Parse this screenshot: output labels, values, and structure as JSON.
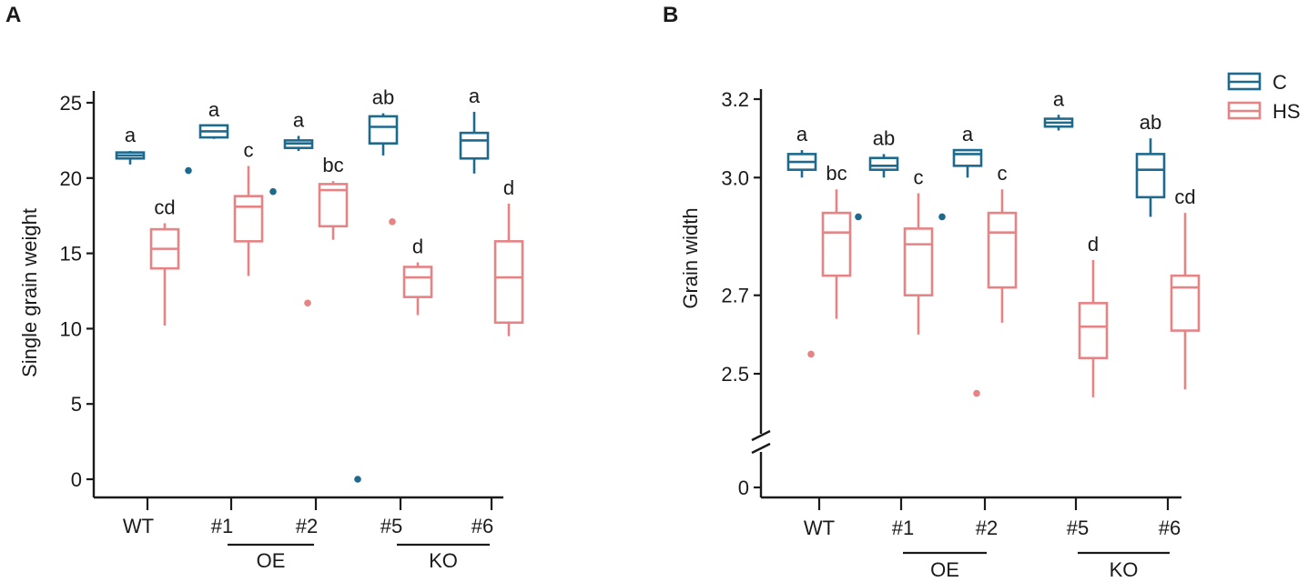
{
  "figure_labels": {
    "left": "A",
    "right": "B"
  },
  "legend": {
    "entries": [
      {
        "name": "C",
        "color": "#1d6a8e"
      },
      {
        "name": "HS",
        "color": "#e58385"
      }
    ]
  },
  "groups": {
    "OE": "OE",
    "KO": "KO"
  },
  "chart_data": [
    {
      "type": "box",
      "panel": "A",
      "title": "",
      "xlabel": "",
      "ylabel": "Single grain weight",
      "ylim": [
        -1.2,
        26.5
      ],
      "yticks": [
        0,
        5,
        10,
        15,
        20,
        25
      ],
      "categories": [
        "WT",
        "#1",
        "#2",
        "#5",
        "#6"
      ],
      "grouping": [
        {
          "name": "OE",
          "categories": [
            "#1",
            "#2"
          ]
        },
        {
          "name": "KO",
          "categories": [
            "#5",
            "#6"
          ]
        }
      ],
      "series": [
        {
          "name": "C",
          "color": "#1d6a8e",
          "boxes": [
            {
              "category": "WT",
              "min": 20.9,
              "q1": 21.3,
              "median": 21.5,
              "q3": 21.7,
              "max": 21.8,
              "outliers": [],
              "label": "a"
            },
            {
              "category": "#1",
              "min": 22.6,
              "q1": 22.7,
              "median": 23.1,
              "q3": 23.5,
              "max": 23.5,
              "outliers": [
                20.5
              ],
              "label": "a"
            },
            {
              "category": "#2",
              "min": 21.8,
              "q1": 22.0,
              "median": 22.3,
              "q3": 22.5,
              "max": 22.8,
              "outliers": [
                19.1
              ],
              "label": "a"
            },
            {
              "category": "#5",
              "min": 21.5,
              "q1": 22.3,
              "median": 23.4,
              "q3": 24.1,
              "max": 24.3,
              "outliers": [
                0.0
              ],
              "label": "ab"
            },
            {
              "category": "#6",
              "min": 20.3,
              "q1": 21.3,
              "median": 22.5,
              "q3": 23.0,
              "max": 24.4,
              "outliers": [],
              "label": "a"
            }
          ]
        },
        {
          "name": "HS",
          "color": "#e58385",
          "boxes": [
            {
              "category": "WT",
              "min": 10.2,
              "q1": 14.0,
              "median": 15.3,
              "q3": 16.6,
              "max": 17.0,
              "outliers": [],
              "label": "cd"
            },
            {
              "category": "#1",
              "min": 13.5,
              "q1": 15.8,
              "median": 18.1,
              "q3": 18.8,
              "max": 20.8,
              "outliers": [],
              "label": "c"
            },
            {
              "category": "#2",
              "min": 15.9,
              "q1": 16.8,
              "median": 19.2,
              "q3": 19.6,
              "max": 19.8,
              "outliers": [
                11.7
              ],
              "label": "bc"
            },
            {
              "category": "#5",
              "min": 10.9,
              "q1": 12.1,
              "median": 13.4,
              "q3": 14.1,
              "max": 14.4,
              "outliers": [
                17.1
              ],
              "label": "d"
            },
            {
              "category": "#6",
              "min": 9.5,
              "q1": 10.4,
              "median": 13.4,
              "q3": 15.8,
              "max": 18.3,
              "outliers": [],
              "label": "d"
            }
          ]
        }
      ]
    },
    {
      "type": "box",
      "panel": "B",
      "title": "",
      "xlabel": "",
      "ylabel": "Grain width",
      "y_axis_break": true,
      "yticks": [
        0,
        2.5,
        2.7,
        3.0,
        3.2
      ],
      "lower_segment_ylim": [
        -0.5,
        0.3
      ],
      "upper_segment_ylim": [
        2.35,
        3.24
      ],
      "categories": [
        "WT",
        "#1",
        "#2",
        "#5",
        "#6"
      ],
      "grouping": [
        {
          "name": "OE",
          "categories": [
            "#1",
            "#2"
          ]
        },
        {
          "name": "KO",
          "categories": [
            "#5",
            "#6"
          ]
        }
      ],
      "series": [
        {
          "name": "C",
          "color": "#1d6a8e",
          "boxes": [
            {
              "category": "WT",
              "min": 3.0,
              "q1": 3.02,
              "median": 3.04,
              "q3": 3.06,
              "max": 3.07,
              "outliers": [],
              "label": "a"
            },
            {
              "category": "#1",
              "min": 3.0,
              "q1": 3.02,
              "median": 3.03,
              "q3": 3.05,
              "max": 3.06,
              "outliers": [
                2.9
              ],
              "label": "ab"
            },
            {
              "category": "#2",
              "min": 3.0,
              "q1": 3.03,
              "median": 3.06,
              "q3": 3.07,
              "max": 3.07,
              "outliers": [
                2.9
              ],
              "label": "a"
            },
            {
              "category": "#5",
              "min": 3.12,
              "q1": 3.13,
              "median": 3.14,
              "q3": 3.15,
              "max": 3.16,
              "outliers": [],
              "label": "a"
            },
            {
              "category": "#6",
              "min": 2.9,
              "q1": 2.95,
              "median": 3.02,
              "q3": 3.06,
              "max": 3.1,
              "outliers": [],
              "label": "ab"
            }
          ]
        },
        {
          "name": "HS",
          "color": "#e58385",
          "boxes": [
            {
              "category": "WT",
              "min": 2.64,
              "q1": 2.75,
              "median": 2.86,
              "q3": 2.91,
              "max": 2.97,
              "outliers": [
                2.55
              ],
              "label": "bc"
            },
            {
              "category": "#1",
              "min": 2.6,
              "q1": 2.7,
              "median": 2.83,
              "q3": 2.87,
              "max": 2.96,
              "outliers": [],
              "label": "c"
            },
            {
              "category": "#2",
              "min": 2.63,
              "q1": 2.72,
              "median": 2.86,
              "q3": 2.91,
              "max": 2.97,
              "outliers": [
                2.45
              ],
              "label": "c"
            },
            {
              "category": "#5",
              "min": 2.44,
              "q1": 2.54,
              "median": 2.62,
              "q3": 2.68,
              "max": 2.79,
              "outliers": [],
              "label": "d"
            },
            {
              "category": "#6",
              "min": 2.46,
              "q1": 2.61,
              "median": 2.72,
              "q3": 2.75,
              "max": 2.91,
              "outliers": [],
              "label": "cd"
            }
          ]
        }
      ]
    }
  ]
}
